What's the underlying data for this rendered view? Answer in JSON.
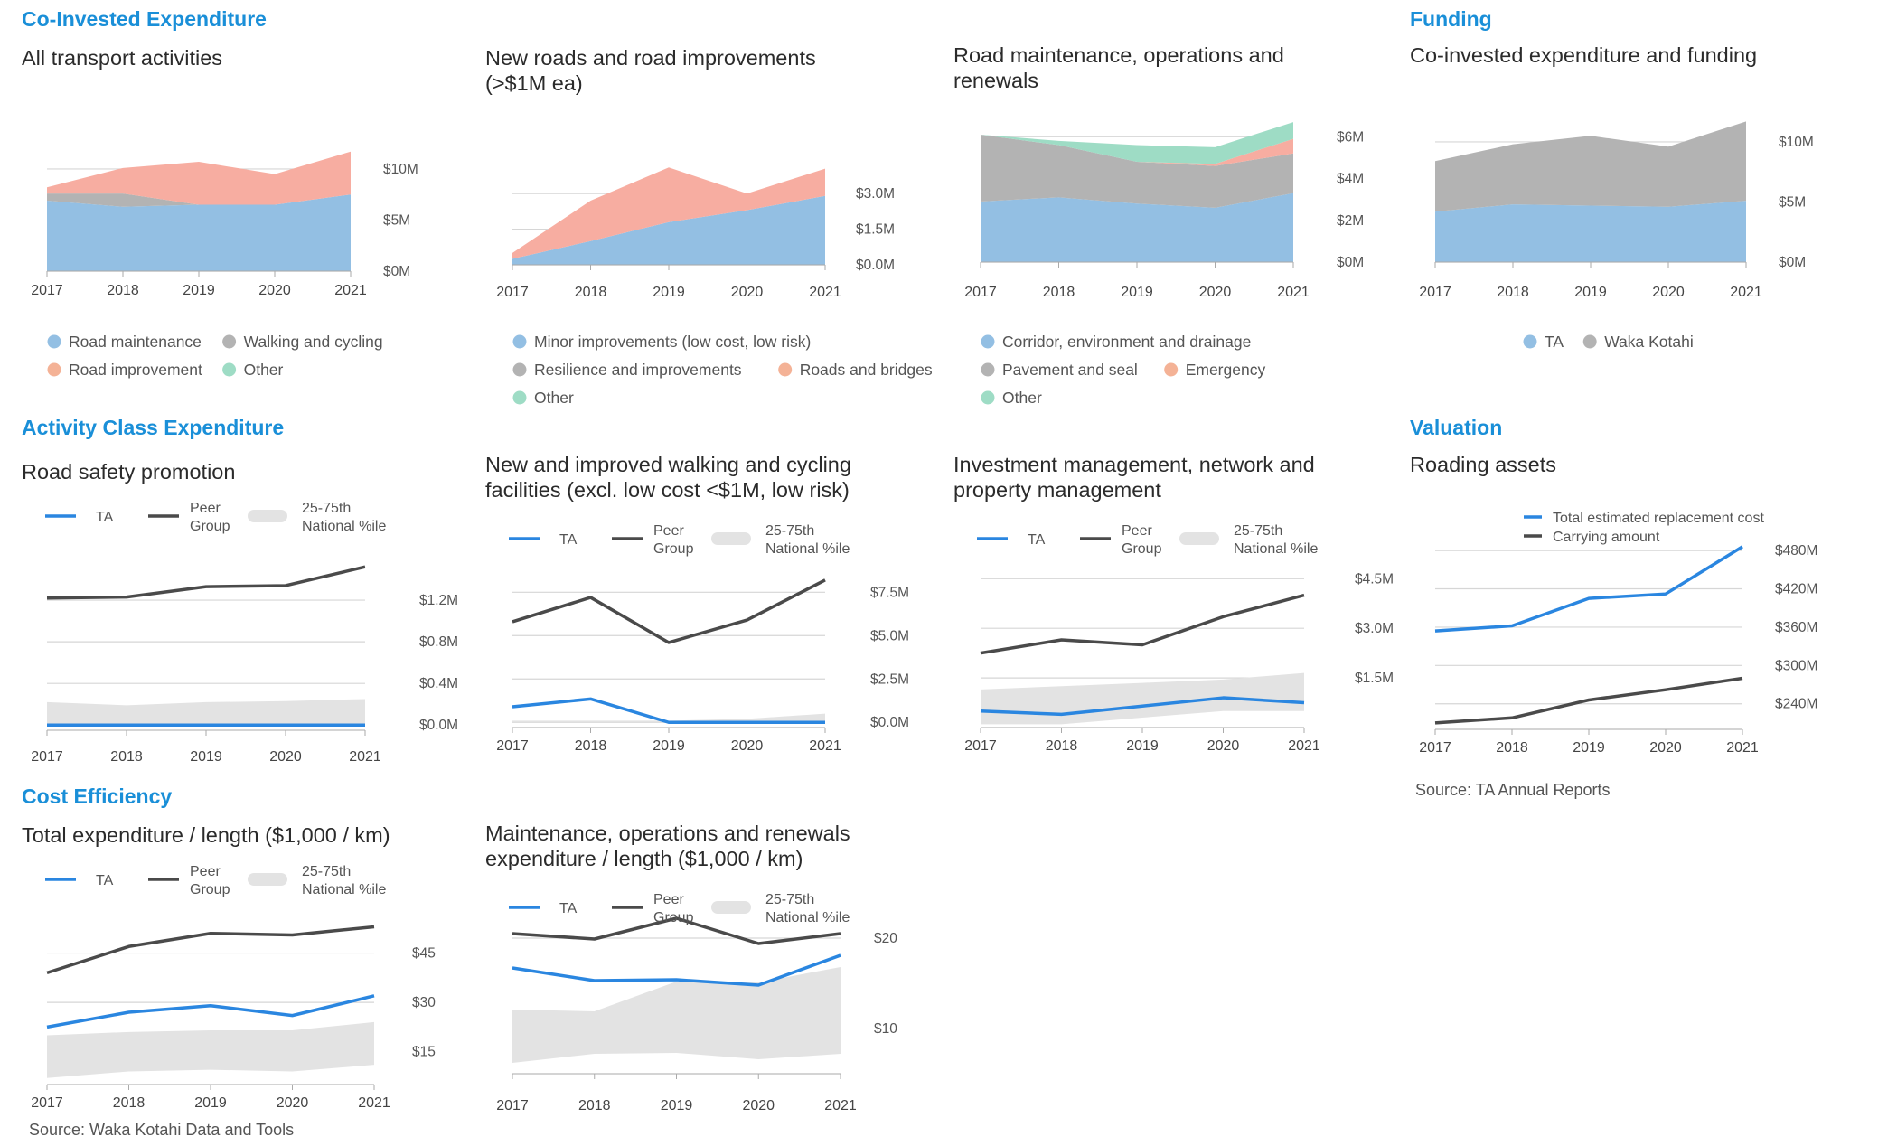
{
  "sections": {
    "co_invested": "Co-Invested Expenditure",
    "funding": "Funding",
    "activity_class": "Activity Class Expenditure",
    "valuation": "Valuation",
    "cost_efficiency": "Cost Efficiency"
  },
  "sources": {
    "ta_reports": "Source: TA Annual Reports",
    "waka_kotahi": "Source: Waka Kotahi Data and Tools"
  },
  "colors": {
    "blue_area": "#93bfe3",
    "salmon_area": "#f7ada1",
    "grey_area": "#b3b3b3",
    "mint_area": "#9edcc5",
    "ta_line": "#2a86e0",
    "peer_line": "#4a4a4a",
    "band": "#e3e3e3",
    "section_heading": "#1a8fd8"
  },
  "chart_data": [
    {
      "id": "all-transport",
      "type": "area",
      "title": "All transport activities",
      "x": [
        "2017",
        "2018",
        "2019",
        "2020",
        "2021"
      ],
      "ylim": [
        0,
        11.5
      ],
      "y_ticks": [
        {
          "v": 0,
          "label": "$0M"
        },
        {
          "v": 5,
          "label": "$5M"
        },
        {
          "v": 10,
          "label": "$10M"
        }
      ],
      "series": [
        {
          "name": "Road maintenance",
          "color": "#93bfe3",
          "values": [
            6.9,
            6.3,
            6.5,
            6.5,
            7.5
          ]
        },
        {
          "name": "Walking and cycling",
          "color": "#b3b3b3",
          "values": [
            0.7,
            1.3,
            0,
            0,
            0
          ]
        },
        {
          "name": "Road improvement",
          "color": "#f7ada1",
          "values": [
            0.6,
            2.5,
            4.2,
            3.0,
            4.2
          ]
        },
        {
          "name": "Other",
          "color": "#9edcc5",
          "values": [
            0,
            0,
            0,
            0,
            0
          ]
        }
      ],
      "legend_rows": [
        [
          "Road maintenance",
          "Walking and cycling"
        ],
        [
          "Road improvement",
          "Other"
        ]
      ],
      "legend_colors": {
        "Road maintenance": "#93bfe3",
        "Walking and cycling": "#b3b3b3",
        "Road improvement": "#f4b296",
        "Other": "#9edcc5"
      }
    },
    {
      "id": "new-roads",
      "type": "area",
      "title": "New roads and road improvements\n(>$1M ea)",
      "x": [
        "2017",
        "2018",
        "2019",
        "2020",
        "2021"
      ],
      "ylim": [
        0,
        4.3
      ],
      "y_ticks": [
        {
          "v": 0,
          "label": "$0.0M"
        },
        {
          "v": 1.5,
          "label": "$1.5M"
        },
        {
          "v": 3.0,
          "label": "$3.0M"
        }
      ],
      "series": [
        {
          "name": "Minor improvements (low cost, low risk)",
          "color": "#93bfe3",
          "values": [
            0.25,
            1.0,
            1.8,
            2.3,
            2.9
          ]
        },
        {
          "name": "Resilience and improvements",
          "color": "#b3b3b3",
          "values": [
            0,
            0,
            0,
            0,
            0
          ]
        },
        {
          "name": "Roads and bridges",
          "color": "#f7ada1",
          "values": [
            0.25,
            1.7,
            2.3,
            0.7,
            1.15
          ]
        },
        {
          "name": "Other",
          "color": "#9edcc5",
          "values": [
            0,
            0,
            0,
            0,
            0
          ]
        }
      ],
      "legend_rows": [
        [
          "Minor improvements (low cost, low risk)"
        ],
        [
          "Resilience and improvements",
          "Roads and bridges"
        ],
        [
          "Other"
        ]
      ],
      "legend_colors": {
        "Minor improvements (low cost, low risk)": "#93bfe3",
        "Resilience and improvements": "#b3b3b3",
        "Roads and bridges": "#f4b296",
        "Other": "#9edcc5"
      }
    },
    {
      "id": "road-maintenance",
      "type": "area",
      "title": "Road maintenance, operations and\nrenewals",
      "x": [
        "2017",
        "2018",
        "2019",
        "2020",
        "2021"
      ],
      "ylim": [
        0,
        6.4
      ],
      "y_ticks": [
        {
          "v": 0,
          "label": "$0M"
        },
        {
          "v": 2,
          "label": "$2M"
        },
        {
          "v": 4,
          "label": "$4M"
        },
        {
          "v": 6,
          "label": "$6M"
        }
      ],
      "series": [
        {
          "name": "Corridor, environment and drainage",
          "color": "#93bfe3",
          "values": [
            2.9,
            3.1,
            2.8,
            2.6,
            3.3
          ]
        },
        {
          "name": "Pavement and seal",
          "color": "#b3b3b3",
          "values": [
            3.2,
            2.5,
            2.0,
            2.0,
            1.9
          ]
        },
        {
          "name": "Emergency",
          "color": "#f7ada1",
          "values": [
            0,
            0,
            0,
            0.1,
            0.7
          ]
        },
        {
          "name": "Other",
          "color": "#9edcc5",
          "values": [
            0,
            0.2,
            0.8,
            0.8,
            0.8
          ]
        }
      ],
      "legend_rows": [
        [
          "Corridor, environment and drainage"
        ],
        [
          "Pavement and seal",
          "Emergency"
        ],
        [
          "Other"
        ]
      ],
      "legend_colors": {
        "Corridor, environment and drainage": "#93bfe3",
        "Pavement and seal": "#b3b3b3",
        "Emergency": "#f4b296",
        "Other": "#9edcc5"
      }
    },
    {
      "id": "funding",
      "type": "area",
      "title": "Co-invested expenditure and funding",
      "x": [
        "2017",
        "2018",
        "2019",
        "2020",
        "2021"
      ],
      "ylim": [
        0,
        11.5
      ],
      "y_ticks": [
        {
          "v": 0,
          "label": "$0M"
        },
        {
          "v": 5,
          "label": "$5M"
        },
        {
          "v": 10,
          "label": "$10M"
        }
      ],
      "series": [
        {
          "name": "TA",
          "color": "#93bfe3",
          "values": [
            4.2,
            4.8,
            4.7,
            4.6,
            5.1
          ]
        },
        {
          "name": "Waka Kotahi",
          "color": "#b3b3b3",
          "values": [
            4.2,
            5.0,
            5.8,
            5.0,
            6.6
          ]
        }
      ],
      "legend_rows": [
        [
          "TA",
          "Waka Kotahi"
        ]
      ],
      "legend_colors": {
        "TA": "#93bfe3",
        "Waka Kotahi": "#b3b3b3"
      }
    },
    {
      "id": "road-safety",
      "type": "line",
      "title": "Road safety promotion",
      "x": [
        "2017",
        "2018",
        "2019",
        "2020",
        "2021"
      ],
      "ylim": [
        -0.05,
        1.6
      ],
      "y_ticks": [
        {
          "v": 0,
          "label": "$0.0M"
        },
        {
          "v": 0.4,
          "label": "$0.4M"
        },
        {
          "v": 0.8,
          "label": "$0.8M"
        },
        {
          "v": 1.2,
          "label": "$1.2M"
        }
      ],
      "series": [
        {
          "name": "TA",
          "values": [
            0,
            0,
            0,
            0,
            0
          ]
        },
        {
          "name": "Peer Group",
          "values": [
            1.22,
            1.23,
            1.33,
            1.34,
            1.52
          ]
        }
      ],
      "band": {
        "name": "25-75th National %ile",
        "low": [
          0,
          0,
          0,
          0,
          0
        ],
        "high": [
          0.22,
          0.19,
          0.22,
          0.23,
          0.25
        ]
      }
    },
    {
      "id": "walking-cycling",
      "type": "line",
      "title": "New and improved walking and cycling\nfacilities (excl. low cost <$1M, low risk)",
      "x": [
        "2017",
        "2018",
        "2019",
        "2020",
        "2021"
      ],
      "ylim": [
        -0.3,
        9.6
      ],
      "y_ticks": [
        {
          "v": 0,
          "label": "$0.0M"
        },
        {
          "v": 2.5,
          "label": "$2.5M"
        },
        {
          "v": 5.0,
          "label": "$5.0M"
        },
        {
          "v": 7.5,
          "label": "$7.5M"
        }
      ],
      "series": [
        {
          "name": "TA",
          "values": [
            0.9,
            1.35,
            0,
            0,
            0
          ]
        },
        {
          "name": "Peer Group",
          "values": [
            5.8,
            7.2,
            4.6,
            5.9,
            8.2
          ]
        }
      ],
      "band": {
        "name": "25-75th National %ile",
        "low": [
          0,
          0,
          0,
          0,
          0
        ],
        "high": [
          0.1,
          0.1,
          0.1,
          0.2,
          0.5
        ]
      }
    },
    {
      "id": "investment-mgmt",
      "type": "line",
      "title": "Investment management, network and\nproperty management",
      "x": [
        "2017",
        "2018",
        "2019",
        "2020",
        "2021"
      ],
      "ylim": [
        0,
        5.6
      ],
      "y_ticks": [
        {
          "v": 1.5,
          "label": "$1.5M"
        },
        {
          "v": 3.0,
          "label": "$3.0M"
        },
        {
          "v": 4.5,
          "label": "$4.5M"
        }
      ],
      "series": [
        {
          "name": "TA",
          "values": [
            0.5,
            0.4,
            0.65,
            0.9,
            0.75
          ]
        },
        {
          "name": "Peer Group",
          "values": [
            2.25,
            2.65,
            2.5,
            3.35,
            4.0
          ]
        }
      ],
      "band": {
        "name": "25-75th National %ile",
        "low": [
          0.1,
          0.1,
          0.3,
          0.5,
          0.5
        ],
        "high": [
          1.15,
          1.25,
          1.35,
          1.45,
          1.65
        ]
      }
    },
    {
      "id": "roading-assets",
      "type": "line",
      "title": "Roading assets",
      "x": [
        "2017",
        "2018",
        "2019",
        "2020",
        "2021"
      ],
      "ylim": [
        200,
        500
      ],
      "y_ticks": [
        {
          "v": 240,
          "label": "$240M"
        },
        {
          "v": 300,
          "label": "$300M"
        },
        {
          "v": 360,
          "label": "$360M"
        },
        {
          "v": 420,
          "label": "$420M"
        },
        {
          "v": 480,
          "label": "$480M"
        }
      ],
      "series": [
        {
          "name": "Total estimated replacement cost",
          "values": [
            354,
            362,
            405,
            412,
            486
          ]
        },
        {
          "name": "Carrying amount",
          "values": [
            210,
            218,
            246,
            262,
            280
          ]
        }
      ]
    },
    {
      "id": "total-exp-length",
      "type": "line",
      "title": "Total expenditure / length ($1,000 / km)",
      "x": [
        "2017",
        "2018",
        "2019",
        "2020",
        "2021"
      ],
      "ylim": [
        5,
        60
      ],
      "y_ticks": [
        {
          "v": 15,
          "label": "$15"
        },
        {
          "v": 30,
          "label": "$30"
        },
        {
          "v": 45,
          "label": "$45"
        }
      ],
      "series": [
        {
          "name": "TA",
          "values": [
            22.5,
            27,
            29,
            26,
            32
          ]
        },
        {
          "name": "Peer Group",
          "values": [
            39,
            47,
            51,
            50.5,
            53
          ]
        }
      ],
      "band": {
        "name": "25-75th National %ile",
        "low": [
          7,
          9,
          9.5,
          9,
          11
        ],
        "high": [
          20,
          21,
          21.5,
          21.5,
          24
        ]
      }
    },
    {
      "id": "maint-exp-length",
      "type": "line",
      "title": "Maintenance, operations and renewals\nexpenditure / length ($1,000 / km)",
      "x": [
        "2017",
        "2018",
        "2019",
        "2020",
        "2021"
      ],
      "ylim": [
        5,
        24.5
      ],
      "y_ticks": [
        {
          "v": 10,
          "label": "$10"
        },
        {
          "v": 20,
          "label": "$20"
        }
      ],
      "series": [
        {
          "name": "TA",
          "values": [
            16.7,
            15.3,
            15.4,
            14.8,
            18.1
          ]
        },
        {
          "name": "Peer Group",
          "values": [
            20.5,
            19.9,
            22.2,
            19.4,
            20.5
          ]
        }
      ],
      "band": {
        "name": "25-75th National %ile",
        "low": [
          6.2,
          7.2,
          7.3,
          6.6,
          7.2
        ],
        "high": [
          12.1,
          11.9,
          15.2,
          15.1,
          16.8
        ]
      }
    }
  ]
}
